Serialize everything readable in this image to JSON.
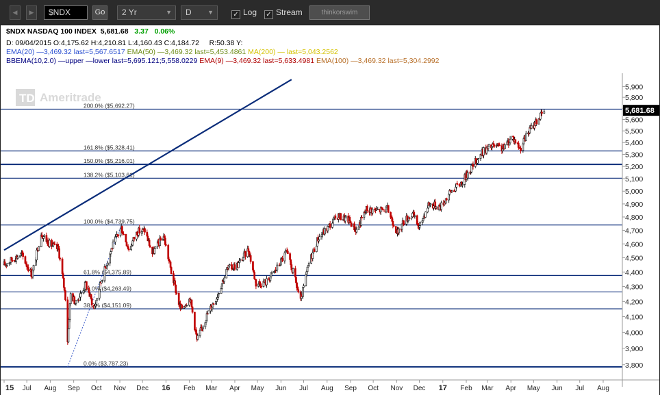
{
  "toolbar": {
    "symbol": "$NDX",
    "go_label": "Go",
    "range": "2 Yr",
    "period": "D",
    "log_label": "Log",
    "stream_label": "Stream",
    "brand_button": "thinkorswim"
  },
  "header": {
    "title": "$NDX NASDAQ 100 INDEX",
    "last": "5,681.68",
    "change": "3.37",
    "change_pct": "0.06%",
    "ohlc": "D: 09/04/2015 O:4,175.62 H:4,210.81 L:4,160.43 C:4,184.72",
    "extra": "R:50.38    Y:",
    "ema20": "EMA(20) —3,469.32 last=5,567.6517",
    "ema50": "EMA(50) —3,469.32 last=5,453.4861",
    "ma200": "MA(200) — last=5,043.2562",
    "bbema": "BBEMA(10,2.0) —upper —lower last=5,695.121;5,558.0229",
    "ema9": "EMA(9) —3,469.32 last=5,633.4981",
    "ema100": "EMA(100) —3,469.32 last=5,304.2992"
  },
  "watermark": "Ameritrade",
  "colors": {
    "up": "#1a1a1a",
    "down": "#c00000",
    "fib": "#0b2d7a",
    "trend": "#0b2d7a",
    "ema20": "#2a4fd0",
    "ema50": "#6f8d1a",
    "ma200": "#d4c200",
    "bbema": "#000080",
    "ema9": "#b00000",
    "ema100": "#b8702a",
    "change": "#00a000"
  },
  "chart_data": {
    "type": "candlestick",
    "scale": "log",
    "ylim": [
      3750,
      5960
    ],
    "y_ticks": [
      "5,900",
      "5,800",
      "5,700",
      "5,600",
      "5,500",
      "5,400",
      "5,300",
      "5,200",
      "5,100",
      "5,000",
      "4,900",
      "4,800",
      "4,700",
      "4,600",
      "4,500",
      "4,400",
      "4,300",
      "4,200",
      "4,100",
      "4,000",
      "3,900",
      "3,800"
    ],
    "x_ticks": [
      "15",
      "Jul",
      "Aug",
      "Sep",
      "Oct",
      "Nov",
      "Dec",
      "16",
      "Feb",
      "Mar",
      "Apr",
      "May",
      "Jun",
      "Jul",
      "Aug",
      "Sep",
      "Oct",
      "Nov",
      "Dec",
      "17",
      "Feb",
      "Mar",
      "Apr",
      "May",
      "Jun",
      "Jul",
      "Aug"
    ],
    "x_dates": [
      "2015-06-01",
      "2015-07-01",
      "2015-08-01",
      "2015-09-01",
      "2015-10-01",
      "2015-11-01",
      "2015-12-01",
      "2016-01-01",
      "2016-02-01",
      "2016-03-01",
      "2016-04-01",
      "2016-05-01",
      "2016-06-01",
      "2016-07-01",
      "2016-08-01",
      "2016-09-01",
      "2016-10-01",
      "2016-11-01",
      "2016-12-01",
      "2017-01-01",
      "2017-02-01",
      "2017-03-01",
      "2017-04-01",
      "2017-05-01",
      "2017-06-01",
      "2017-07-01",
      "2017-08-01"
    ],
    "price_label": "5,681.68",
    "price_value": 5681.68,
    "fib_levels": [
      {
        "label": "200.0% ($5,692.27)",
        "value": 5692.27
      },
      {
        "label": "161.8% ($5,328.41)",
        "value": 5328.41
      },
      {
        "label": "150.0% ($5,216.01)",
        "value": 5216.01
      },
      {
        "label": "138.2% ($5,103.61)",
        "value": 5103.61
      },
      {
        "label": "100.0% ($4,739.75)",
        "value": 4739.75
      },
      {
        "label": "61.8% ($4,375.89)",
        "value": 4375.89
      },
      {
        "label": "50.0% ($4,263.49)",
        "value": 4263.49
      },
      {
        "label": "38.2% ($4,151.09)",
        "value": 4151.09
      },
      {
        "label": "0.0% ($3,787.23)",
        "value": 3787.23
      }
    ],
    "trendline": [
      {
        "date": "2015-06-01",
        "value": 4555
      },
      {
        "date": "2016-06-15",
        "value": 5965
      }
    ],
    "fib_anchor": [
      {
        "date": "2015-08-24",
        "value": 3787.23
      },
      {
        "date": "2015-11-03",
        "value": 4739.75
      }
    ],
    "series": [
      {
        "date": "2015-06-01",
        "close": 4450
      },
      {
        "date": "2015-06-12",
        "close": 4490
      },
      {
        "date": "2015-06-24",
        "close": 4525
      },
      {
        "date": "2015-07-08",
        "close": 4380
      },
      {
        "date": "2015-07-20",
        "close": 4680
      },
      {
        "date": "2015-07-31",
        "close": 4600
      },
      {
        "date": "2015-08-12",
        "close": 4560
      },
      {
        "date": "2015-08-21",
        "close": 4230
      },
      {
        "date": "2015-08-24",
        "close": 3950
      },
      {
        "date": "2015-08-28",
        "close": 4250
      },
      {
        "date": "2015-09-04",
        "close": 4185
      },
      {
        "date": "2015-09-17",
        "close": 4320
      },
      {
        "date": "2015-09-28",
        "close": 4150
      },
      {
        "date": "2015-10-08",
        "close": 4350
      },
      {
        "date": "2015-10-22",
        "close": 4580
      },
      {
        "date": "2015-11-03",
        "close": 4720
      },
      {
        "date": "2015-11-13",
        "close": 4560
      },
      {
        "date": "2015-11-24",
        "close": 4690
      },
      {
        "date": "2015-12-04",
        "close": 4700
      },
      {
        "date": "2015-12-14",
        "close": 4530
      },
      {
        "date": "2015-12-29",
        "close": 4660
      },
      {
        "date": "2016-01-08",
        "close": 4400
      },
      {
        "date": "2016-01-20",
        "close": 4150
      },
      {
        "date": "2016-02-02",
        "close": 4220
      },
      {
        "date": "2016-02-11",
        "close": 3950
      },
      {
        "date": "2016-02-25",
        "close": 4120
      },
      {
        "date": "2016-03-08",
        "close": 4230
      },
      {
        "date": "2016-03-22",
        "close": 4420
      },
      {
        "date": "2016-04-05",
        "close": 4450
      },
      {
        "date": "2016-04-19",
        "close": 4560
      },
      {
        "date": "2016-04-29",
        "close": 4320
      },
      {
        "date": "2016-05-12",
        "close": 4330
      },
      {
        "date": "2016-05-26",
        "close": 4420
      },
      {
        "date": "2016-06-08",
        "close": 4540
      },
      {
        "date": "2016-06-17",
        "close": 4400
      },
      {
        "date": "2016-06-27",
        "close": 4200
      },
      {
        "date": "2016-07-08",
        "close": 4460
      },
      {
        "date": "2016-07-20",
        "close": 4640
      },
      {
        "date": "2016-08-02",
        "close": 4720
      },
      {
        "date": "2016-08-15",
        "close": 4810
      },
      {
        "date": "2016-08-30",
        "close": 4775
      },
      {
        "date": "2016-09-09",
        "close": 4700
      },
      {
        "date": "2016-09-22",
        "close": 4860
      },
      {
        "date": "2016-10-05",
        "close": 4850
      },
      {
        "date": "2016-10-20",
        "close": 4860
      },
      {
        "date": "2016-11-03",
        "close": 4670
      },
      {
        "date": "2016-11-10",
        "close": 4770
      },
      {
        "date": "2016-11-22",
        "close": 4820
      },
      {
        "date": "2016-12-01",
        "close": 4720
      },
      {
        "date": "2016-12-13",
        "close": 4900
      },
      {
        "date": "2016-12-29",
        "close": 4880
      },
      {
        "date": "2017-01-12",
        "close": 5000
      },
      {
        "date": "2017-01-26",
        "close": 5070
      },
      {
        "date": "2017-02-09",
        "close": 5200
      },
      {
        "date": "2017-02-24",
        "close": 5330
      },
      {
        "date": "2017-03-08",
        "close": 5370
      },
      {
        "date": "2017-03-22",
        "close": 5350
      },
      {
        "date": "2017-04-03",
        "close": 5450
      },
      {
        "date": "2017-04-13",
        "close": 5350
      },
      {
        "date": "2017-04-24",
        "close": 5490
      },
      {
        "date": "2017-05-05",
        "close": 5590
      },
      {
        "date": "2017-05-16",
        "close": 5681.68
      }
    ]
  }
}
